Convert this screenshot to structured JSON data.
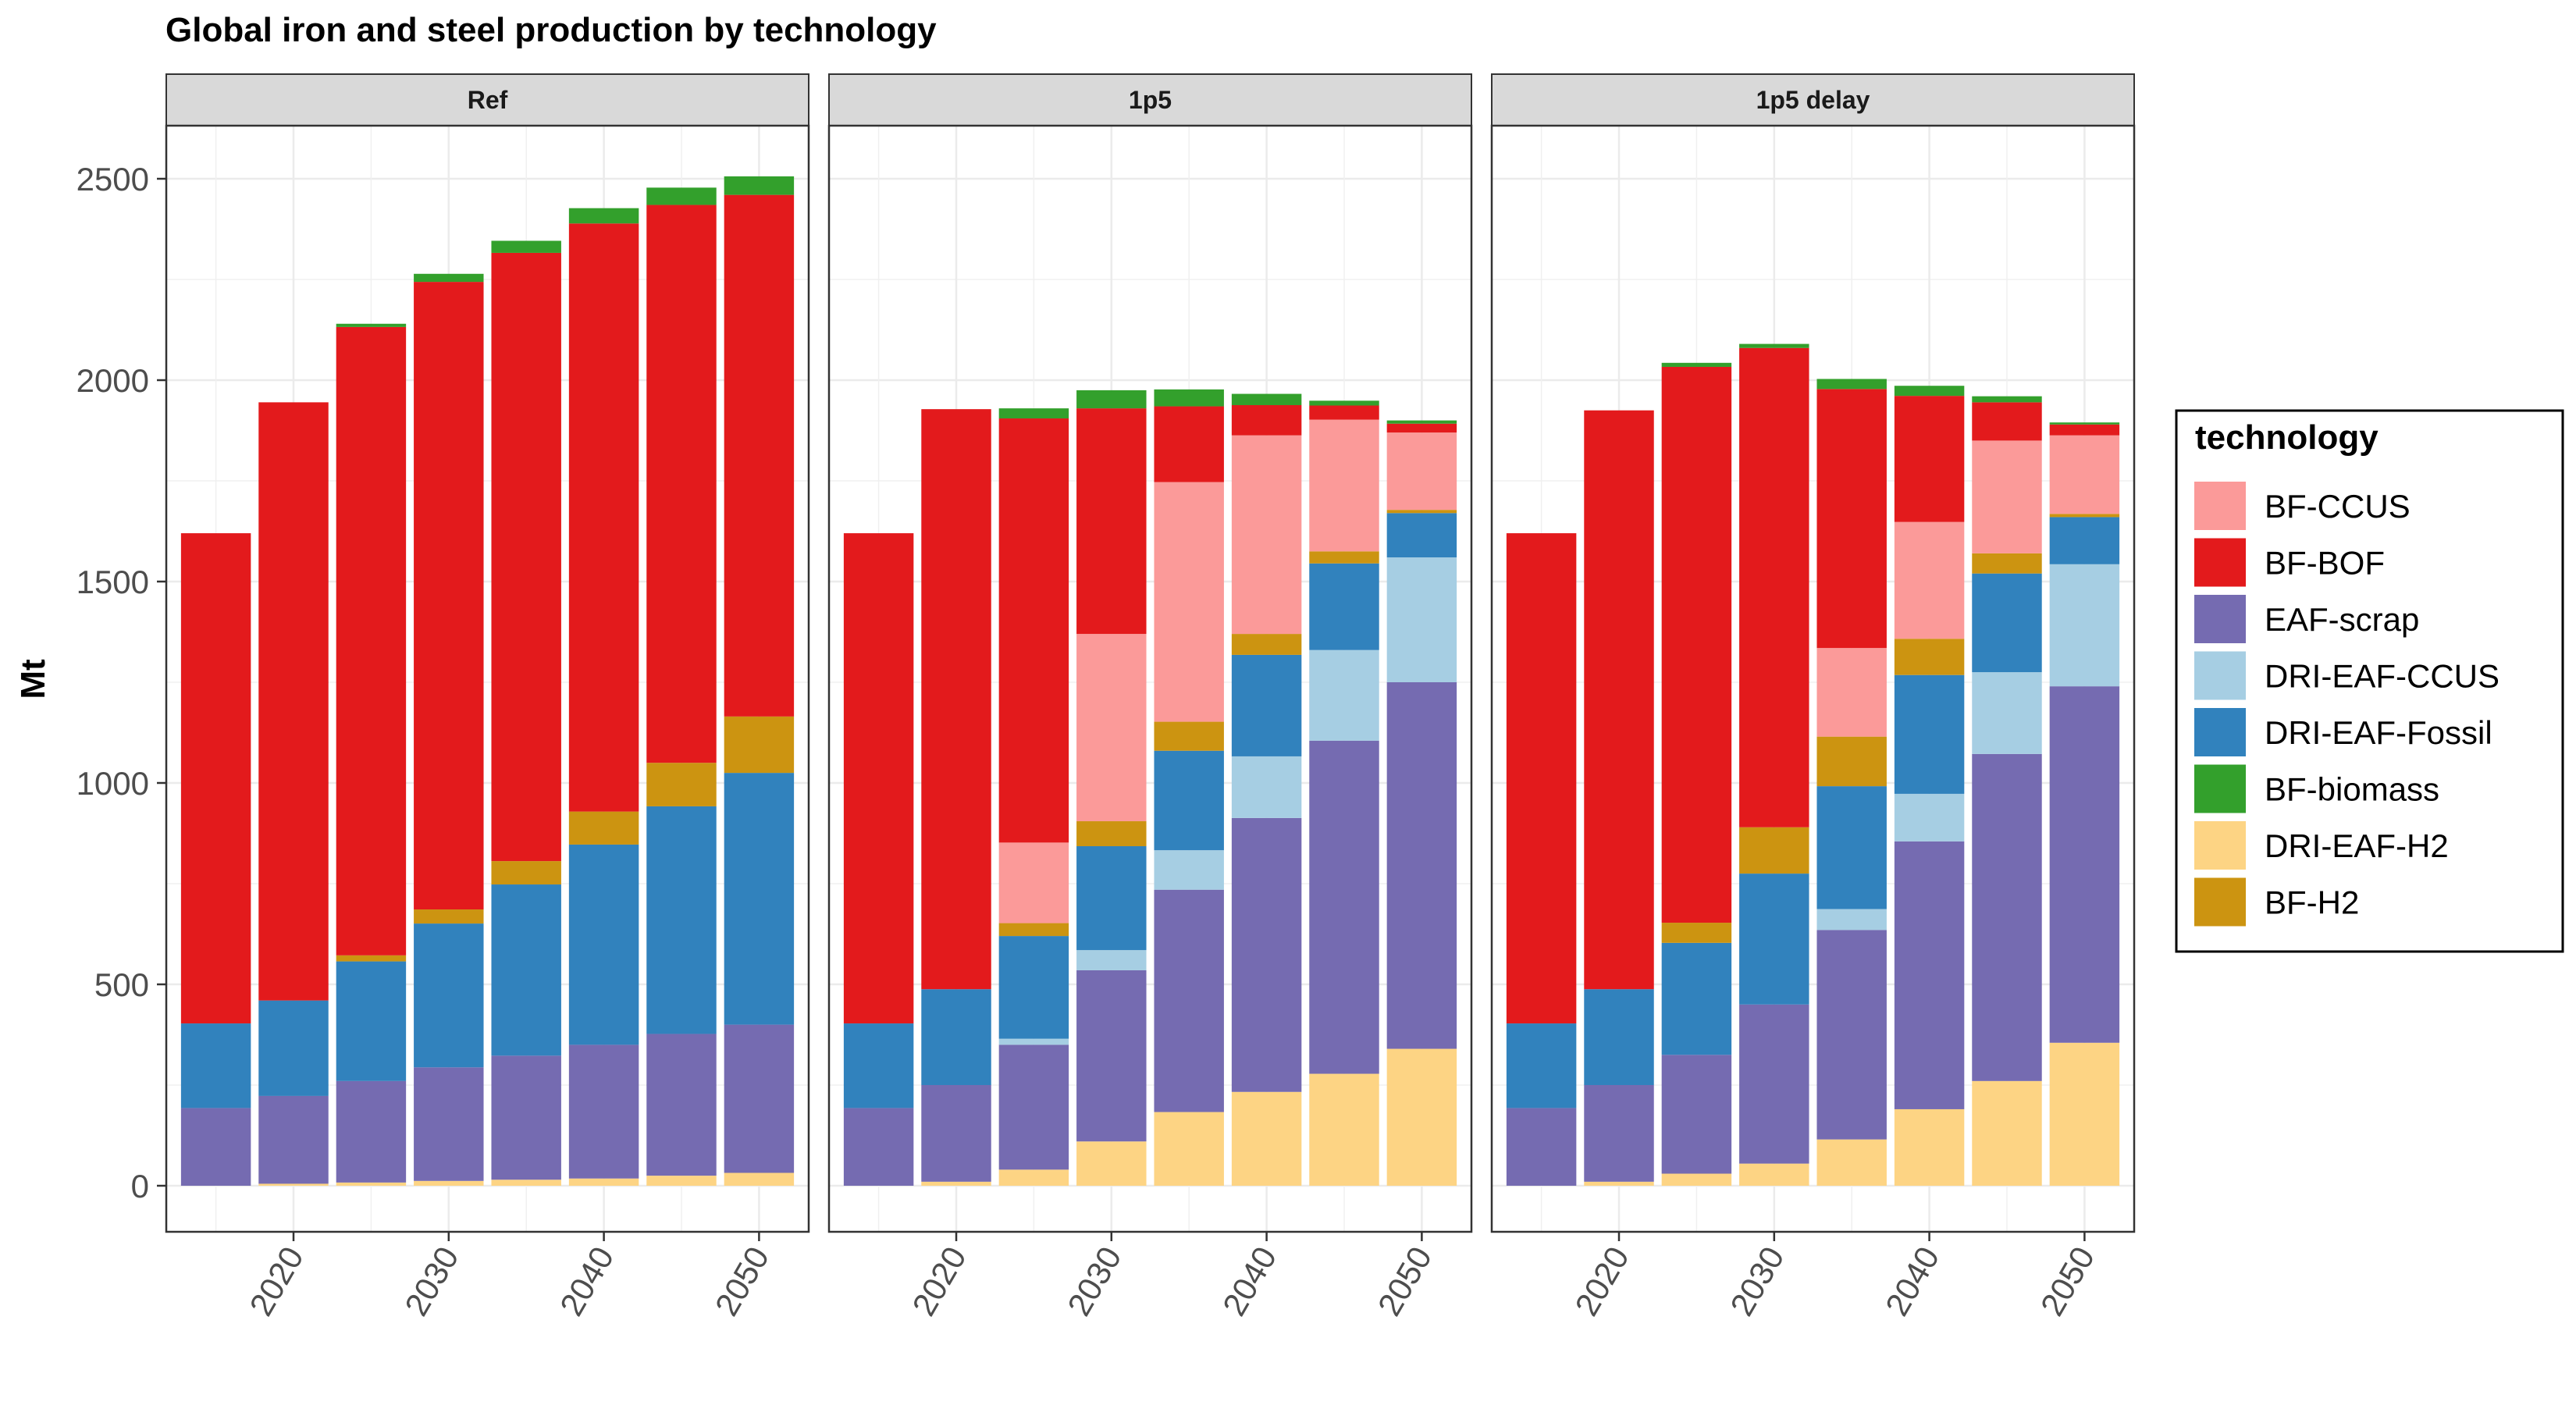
{
  "chart_data": {
    "type": "bar",
    "stacked": true,
    "title": "Global iron and steel production by technology",
    "ylabel": "Mt",
    "xlabel": "",
    "ylim": [
      0,
      2500
    ],
    "y_ticks": [
      0,
      500,
      1000,
      1500,
      2000,
      2500
    ],
    "x_ticks": [
      2020,
      2030,
      2040,
      2050
    ],
    "x": [
      2015,
      2020,
      2025,
      2030,
      2035,
      2040,
      2045,
      2050
    ],
    "grid": true,
    "legend": {
      "title": "technology",
      "position": "right",
      "entries": [
        "BF-CCUS",
        "BF-BOF",
        "EAF-scrap",
        "DRI-EAF-CCUS",
        "DRI-EAF-Fossil",
        "BF-biomass",
        "DRI-EAF-H2",
        "BF-H2"
      ]
    },
    "colors": {
      "BF-CCUS": "#FB9A99",
      "BF-BOF": "#E31A1C",
      "EAF-scrap": "#756BB1",
      "DRI-EAF-CCUS": "#A6CEE3",
      "DRI-EAF-Fossil": "#3182BD",
      "BF-biomass": "#33A02C",
      "DRI-EAF-H2": "#FDD484",
      "BF-H2": "#CC9411"
    },
    "stack_order": [
      "DRI-EAF-H2",
      "EAF-scrap",
      "DRI-EAF-CCUS",
      "DRI-EAF-Fossil",
      "BF-H2",
      "BF-CCUS",
      "BF-BOF",
      "BF-biomass"
    ],
    "panels": [
      {
        "name": "Ref",
        "series": [
          {
            "name": "DRI-EAF-H2",
            "values": [
              0,
              5,
              8,
              12,
              15,
              18,
              25,
              32
            ]
          },
          {
            "name": "EAF-scrap",
            "values": [
              193,
              218,
              252,
              282,
              308,
              332,
              352,
              368
            ]
          },
          {
            "name": "DRI-EAF-CCUS",
            "values": [
              0,
              0,
              0,
              0,
              0,
              0,
              0,
              0
            ]
          },
          {
            "name": "DRI-EAF-Fossil",
            "values": [
              210,
              237,
              297,
              357,
              425,
              497,
              565,
              625
            ]
          },
          {
            "name": "BF-H2",
            "values": [
              0,
              0,
              15,
              35,
              58,
              82,
              108,
              140
            ]
          },
          {
            "name": "BF-CCUS",
            "values": [
              0,
              0,
              0,
              0,
              0,
              0,
              0,
              0
            ]
          },
          {
            "name": "BF-BOF",
            "values": [
              1217,
              1485,
              1560,
              1558,
              1510,
              1460,
              1385,
              1295
            ]
          },
          {
            "name": "BF-biomass",
            "values": [
              0,
              0,
              8,
              20,
              30,
              38,
              43,
              46
            ]
          }
        ]
      },
      {
        "name": "1p5",
        "series": [
          {
            "name": "DRI-EAF-H2",
            "values": [
              0,
              10,
              40,
              110,
              183,
              233,
              278,
              340
            ]
          },
          {
            "name": "EAF-scrap",
            "values": [
              193,
              240,
              310,
              425,
              552,
              680,
              827,
              910
            ]
          },
          {
            "name": "DRI-EAF-CCUS",
            "values": [
              0,
              0,
              15,
              50,
              98,
              153,
              225,
              310
            ]
          },
          {
            "name": "DRI-EAF-Fossil",
            "values": [
              210,
              238,
              255,
              258,
              247,
              252,
              215,
              110
            ]
          },
          {
            "name": "BF-H2",
            "values": [
              0,
              0,
              32,
              62,
              72,
              52,
              30,
              8
            ]
          },
          {
            "name": "BF-CCUS",
            "values": [
              0,
              0,
              200,
              465,
              595,
              493,
              327,
              192
            ]
          },
          {
            "name": "BF-BOF",
            "values": [
              1217,
              1440,
              1053,
              560,
              188,
              75,
              35,
              22
            ]
          },
          {
            "name": "BF-biomass",
            "values": [
              0,
              0,
              25,
              45,
              42,
              28,
              12,
              8
            ]
          }
        ]
      },
      {
        "name": "1p5 delay",
        "series": [
          {
            "name": "DRI-EAF-H2",
            "values": [
              0,
              10,
              30,
              55,
              115,
              190,
              260,
              355
            ]
          },
          {
            "name": "EAF-scrap",
            "values": [
              193,
              240,
              295,
              395,
              520,
              665,
              812,
              885
            ]
          },
          {
            "name": "DRI-EAF-CCUS",
            "values": [
              0,
              0,
              0,
              0,
              52,
              118,
              203,
              303
            ]
          },
          {
            "name": "DRI-EAF-Fossil",
            "values": [
              210,
              238,
              278,
              325,
              305,
              295,
              245,
              117
            ]
          },
          {
            "name": "BF-H2",
            "values": [
              0,
              0,
              50,
              115,
              123,
              90,
              50,
              8
            ]
          },
          {
            "name": "BF-CCUS",
            "values": [
              0,
              0,
              0,
              0,
              220,
              290,
              280,
              195
            ]
          },
          {
            "name": "BF-BOF",
            "values": [
              1217,
              1437,
              1380,
              1190,
              643,
              313,
              95,
              27
            ]
          },
          {
            "name": "BF-biomass",
            "values": [
              0,
              0,
              10,
              10,
              25,
              25,
              15,
              5
            ]
          }
        ]
      }
    ]
  }
}
